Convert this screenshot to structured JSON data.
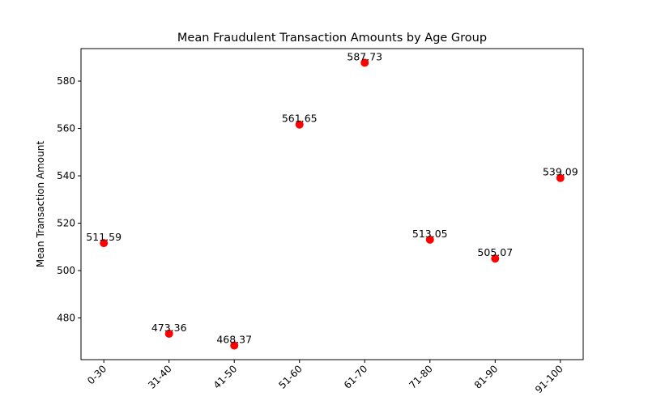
{
  "chart_data": {
    "type": "scatter",
    "title": "Mean Fraudulent Transaction Amounts by Age Group",
    "xlabel": "",
    "ylabel": "Mean Transaction Amount",
    "categories": [
      "0-30",
      "31-40",
      "41-50",
      "51-60",
      "61-70",
      "71-80",
      "81-90",
      "91-100"
    ],
    "values": [
      511.59,
      473.36,
      468.37,
      561.65,
      587.73,
      513.05,
      505.07,
      539.09
    ],
    "data_labels": [
      "511.59",
      "473.36",
      "468.37",
      "561.65",
      "587.73",
      "513.05",
      "505.07",
      "539.09"
    ],
    "ylim": [
      462.4,
      593.7
    ],
    "yticks": [
      480,
      500,
      520,
      540,
      560,
      580
    ],
    "ytick_labels": [
      "480",
      "500",
      "520",
      "540",
      "560",
      "580"
    ],
    "marker_color": "#ff0000",
    "grid": false,
    "legend": "none"
  }
}
